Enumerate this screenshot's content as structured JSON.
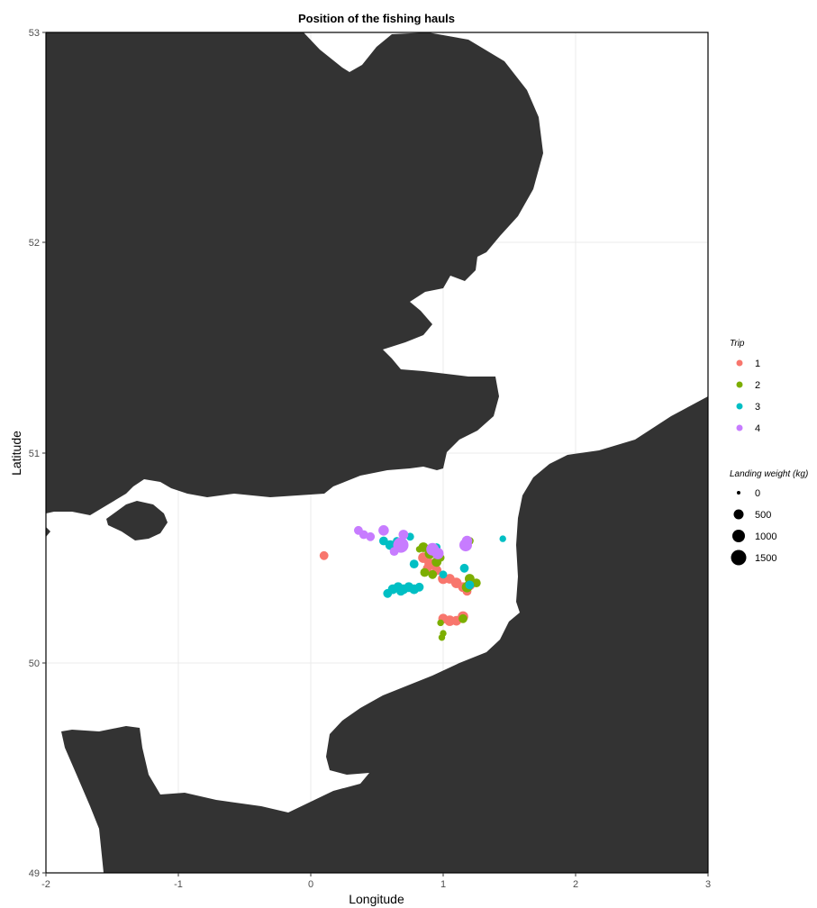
{
  "title": "Position of the fishing hauls",
  "axes": {
    "xlabel": "Longitude",
    "ylabel": "Latitude",
    "xticks": [
      "-2",
      "-1",
      "0",
      "1",
      "2",
      "3"
    ],
    "yticks": [
      "49",
      "50",
      "51",
      "52",
      "53"
    ]
  },
  "colors": {
    "land": "#333333",
    "sea": "#ffffff",
    "grid": "#ebebeb",
    "trip_1": "#f8766d",
    "trip_2": "#7cae00",
    "trip_3": "#00bfc4",
    "trip_4": "#c77cff"
  },
  "legend": {
    "trip_title": "Trip",
    "trips": [
      {
        "label": "1",
        "color": "#f8766d"
      },
      {
        "label": "2",
        "color": "#7cae00"
      },
      {
        "label": "3",
        "color": "#00bfc4"
      },
      {
        "label": "4",
        "color": "#c77cff"
      }
    ],
    "weight_title": "Landing weight (kg)",
    "weights": [
      {
        "label": "0",
        "value": 0
      },
      {
        "label": "500",
        "value": 500
      },
      {
        "label": "1000",
        "value": 1000
      },
      {
        "label": "1500",
        "value": 1500
      }
    ]
  },
  "chart_data": {
    "type": "scatter",
    "xlim": [
      -2,
      3
    ],
    "ylim": [
      49,
      53
    ],
    "grid": true,
    "legend_position": "right",
    "x_field": "longitude",
    "y_field": "latitude",
    "size_field": "landing_weight_kg",
    "series": [
      {
        "name": "1",
        "points": [
          [
            0.1,
            50.51,
            300
          ],
          [
            0.85,
            50.5,
            500
          ],
          [
            0.9,
            50.47,
            600
          ],
          [
            0.95,
            50.44,
            400
          ],
          [
            1.0,
            50.4,
            500
          ],
          [
            1.05,
            50.4,
            400
          ],
          [
            1.1,
            50.38,
            500
          ],
          [
            1.15,
            50.36,
            400
          ],
          [
            1.2,
            50.37,
            500
          ],
          [
            1.18,
            50.34,
            300
          ],
          [
            1.0,
            50.21,
            400
          ],
          [
            1.05,
            50.2,
            500
          ],
          [
            1.1,
            50.2,
            400
          ],
          [
            1.15,
            50.22,
            500
          ],
          [
            0.88,
            50.45,
            300
          ]
        ]
      },
      {
        "name": "2",
        "points": [
          [
            0.85,
            50.55,
            400
          ],
          [
            0.9,
            50.52,
            500
          ],
          [
            0.95,
            50.48,
            400
          ],
          [
            0.92,
            50.42,
            300
          ],
          [
            0.86,
            50.43,
            300
          ],
          [
            0.98,
            50.5,
            200
          ],
          [
            1.2,
            50.58,
            200
          ],
          [
            1.2,
            50.4,
            400
          ],
          [
            1.25,
            50.38,
            300
          ],
          [
            1.18,
            50.36,
            500
          ],
          [
            1.15,
            50.21,
            300
          ],
          [
            0.98,
            50.19,
            100
          ],
          [
            1.0,
            50.14,
            100
          ],
          [
            0.99,
            50.12,
            100
          ],
          [
            0.82,
            50.54,
            100
          ]
        ]
      },
      {
        "name": "3",
        "points": [
          [
            0.55,
            50.58,
            300
          ],
          [
            0.6,
            50.56,
            400
          ],
          [
            0.65,
            50.58,
            200
          ],
          [
            0.75,
            50.6,
            200
          ],
          [
            0.78,
            50.47,
            300
          ],
          [
            0.95,
            50.55,
            200
          ],
          [
            1.45,
            50.59,
            100
          ],
          [
            1.16,
            50.45,
            300
          ],
          [
            0.58,
            50.33,
            300
          ],
          [
            0.62,
            50.35,
            400
          ],
          [
            0.66,
            50.36,
            400
          ],
          [
            0.7,
            50.35,
            400
          ],
          [
            0.74,
            50.36,
            400
          ],
          [
            0.78,
            50.35,
            400
          ],
          [
            0.82,
            50.36,
            300
          ],
          [
            0.68,
            50.34,
            300
          ],
          [
            1.0,
            50.42,
            200
          ],
          [
            1.2,
            50.37,
            300
          ]
        ]
      },
      {
        "name": "4",
        "points": [
          [
            0.36,
            50.63,
            300
          ],
          [
            0.4,
            50.61,
            300
          ],
          [
            0.45,
            50.6,
            300
          ],
          [
            0.55,
            50.63,
            500
          ],
          [
            0.68,
            50.56,
            1500
          ],
          [
            0.7,
            50.61,
            400
          ],
          [
            0.92,
            50.54,
            900
          ],
          [
            0.96,
            50.52,
            700
          ],
          [
            1.17,
            50.56,
            900
          ],
          [
            1.18,
            50.58,
            500
          ],
          [
            0.63,
            50.53,
            300
          ]
        ]
      }
    ]
  }
}
